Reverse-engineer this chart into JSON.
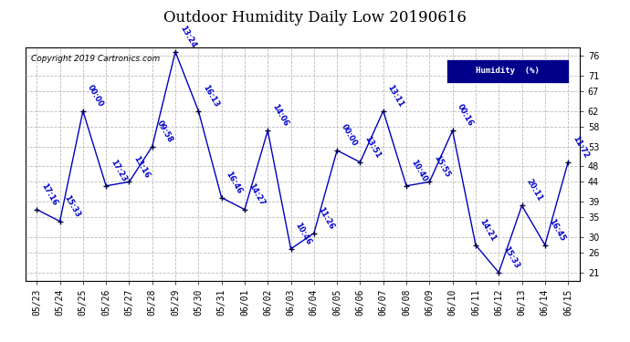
{
  "title": "Outdoor Humidity Daily Low 20190616",
  "copyright": "Copyright 2019 Cartronics.com",
  "legend_label": "Humidity  (%)",
  "yticks": [
    21,
    26,
    30,
    35,
    39,
    44,
    48,
    53,
    58,
    62,
    67,
    71,
    76
  ],
  "ylim": [
    19,
    78
  ],
  "dates": [
    "05/23",
    "05/24",
    "05/25",
    "05/26",
    "05/27",
    "05/28",
    "05/29",
    "05/30",
    "05/31",
    "06/01",
    "06/02",
    "06/03",
    "06/04",
    "06/05",
    "06/06",
    "06/07",
    "06/08",
    "06/09",
    "06/10",
    "06/11",
    "06/12",
    "06/13",
    "06/14",
    "06/15"
  ],
  "values": [
    37,
    34,
    62,
    43,
    44,
    53,
    77,
    62,
    40,
    37,
    57,
    27,
    31,
    52,
    49,
    62,
    43,
    44,
    57,
    28,
    21,
    38,
    28,
    49
  ],
  "times": [
    "17:16",
    "15:33",
    "00:00",
    "17:23",
    "13:16",
    "09:58",
    "13:24",
    "16:13",
    "16:46",
    "14:27",
    "14:06",
    "10:46",
    "11:26",
    "00:00",
    "13:51",
    "13:11",
    "10:40",
    "15:55",
    "00:16",
    "14:21",
    "15:33",
    "20:11",
    "16:45",
    "11:72"
  ],
  "line_color": "#0000bb",
  "marker_color": "#000044",
  "label_color": "#0000cc",
  "bg_color": "#ffffff",
  "grid_color": "#aaaaaa",
  "title_color": "#000000",
  "legend_bg": "#00008B",
  "legend_text_color": "#ffffff",
  "title_fontsize": 12,
  "tick_fontsize": 7,
  "annotation_fontsize": 6,
  "copyright_fontsize": 6.5
}
